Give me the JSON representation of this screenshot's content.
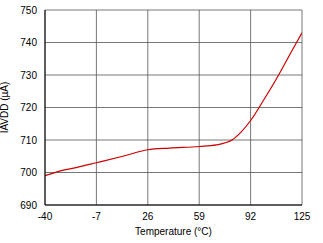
{
  "chart_data": {
    "type": "line",
    "x_label": "Temperature (°C)",
    "y_label": "IAVDD (µA)",
    "x": [
      -40,
      -30,
      -20,
      -7,
      10,
      26,
      40,
      59,
      70,
      80,
      86,
      92,
      100,
      110,
      118,
      125
    ],
    "series": [
      {
        "name": "IAVDD",
        "color": "#cc0000",
        "values": [
          699,
          700.5,
          701.5,
          703,
          705,
          707,
          707.5,
          708,
          708.5,
          710,
          712.5,
          716,
          722,
          730,
          737,
          743
        ]
      }
    ],
    "xlim": [
      -40,
      125
    ],
    "xticks": [
      -40,
      -7,
      26,
      59,
      92,
      125
    ],
    "ylim": [
      690,
      750
    ],
    "yticks": [
      690,
      700,
      710,
      720,
      730,
      740,
      750
    ],
    "grid": true
  }
}
